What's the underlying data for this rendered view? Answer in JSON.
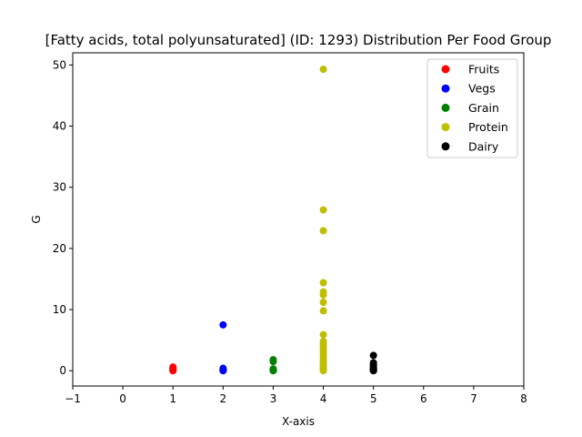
{
  "chart_data": {
    "type": "scatter",
    "title": "[Fatty acids, total polyunsaturated] (ID: 1293) Distribution Per Food Group",
    "xlabel": "X-axis",
    "ylabel": "G",
    "xlim": [
      -1,
      8
    ],
    "ylim": [
      -2.5,
      52
    ],
    "xticks": [
      -1,
      0,
      1,
      2,
      3,
      4,
      5,
      6,
      7,
      8
    ],
    "yticks": [
      0,
      10,
      20,
      30,
      40,
      50
    ],
    "grid": false,
    "legend_position": "top-right",
    "series": [
      {
        "name": "Fruits",
        "color": "#ff0000",
        "x": [
          1,
          1,
          1,
          1,
          1,
          1
        ],
        "y": [
          0.0,
          0.05,
          0.1,
          0.2,
          0.35,
          0.6
        ]
      },
      {
        "name": "Vegs",
        "color": "#0000ff",
        "x": [
          2,
          2,
          2,
          2,
          2,
          2
        ],
        "y": [
          0.0,
          0.05,
          0.1,
          0.2,
          0.4,
          7.5
        ]
      },
      {
        "name": "Grain",
        "color": "#008000",
        "x": [
          3,
          3,
          3,
          3,
          3,
          3,
          3
        ],
        "y": [
          0.0,
          0.05,
          0.1,
          0.2,
          0.3,
          1.5,
          1.8
        ]
      },
      {
        "name": "Protein",
        "color": "#bfbf00",
        "x": [
          4,
          4,
          4,
          4,
          4,
          4,
          4,
          4,
          4,
          4,
          4,
          4,
          4,
          4,
          4,
          4,
          4,
          4,
          4,
          4,
          4,
          4,
          4,
          4
        ],
        "y": [
          0.0,
          0.2,
          0.4,
          0.7,
          1.0,
          1.4,
          1.8,
          2.3,
          2.8,
          3.3,
          3.8,
          4.3,
          4.8,
          5.9,
          9.8,
          11.2,
          12.4,
          12.9,
          14.4,
          22.9,
          26.3,
          49.3,
          0.1,
          0.5
        ]
      },
      {
        "name": "Dairy",
        "color": "#000000",
        "x": [
          5,
          5,
          5,
          5,
          5,
          5,
          5,
          5,
          5,
          5
        ],
        "y": [
          0.0,
          0.05,
          0.1,
          0.2,
          0.35,
          0.5,
          0.8,
          1.0,
          1.3,
          2.5
        ]
      }
    ]
  }
}
